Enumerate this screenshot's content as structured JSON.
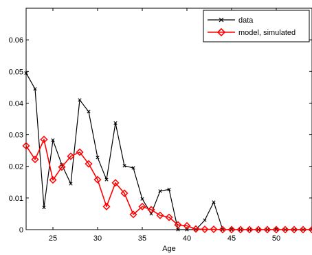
{
  "chart_data": {
    "type": "line",
    "xlabel": "Age",
    "ylabel": "",
    "xlim": [
      22,
      54
    ],
    "ylim": [
      0,
      0.07
    ],
    "grid": false,
    "legend_position": "top-right",
    "x_ticks": [
      25,
      30,
      35,
      40,
      45,
      50
    ],
    "x_tick_labels": [
      "25",
      "30",
      "35",
      "40",
      "45",
      "50"
    ],
    "y_ticks": [
      0,
      0.01,
      0.02,
      0.03,
      0.04,
      0.05,
      0.06
    ],
    "y_tick_labels": [
      "0",
      "0.01",
      "0.02",
      "0.03",
      "0.04",
      "0.05",
      "0.06"
    ],
    "x": [
      22,
      23,
      24,
      25,
      26,
      27,
      28,
      29,
      30,
      31,
      32,
      33,
      34,
      35,
      36,
      37,
      38,
      39,
      40,
      41,
      42,
      43,
      44,
      45,
      46,
      47,
      48,
      49,
      50,
      51,
      52,
      53,
      54
    ],
    "series": [
      {
        "name": "data",
        "color": "#000000",
        "marker": "x",
        "values": [
          0.0495,
          0.0445,
          0.007,
          0.0283,
          0.0205,
          0.0145,
          0.041,
          0.0373,
          0.0228,
          0.0158,
          0.0337,
          0.0202,
          0.0195,
          0.0097,
          0.005,
          0.0122,
          0.0127,
          0,
          0,
          0,
          0.003,
          0.0087,
          0,
          0,
          0,
          0,
          0,
          0,
          0,
          0,
          0,
          0,
          0
        ]
      },
      {
        "name": "model, simulated",
        "color": "#ff0000",
        "marker": "diamond",
        "values": [
          0.0265,
          0.0222,
          0.0285,
          0.0157,
          0.0198,
          0.0232,
          0.0245,
          0.0208,
          0.0158,
          0.0073,
          0.0148,
          0.0115,
          0.0048,
          0.0073,
          0.0063,
          0.0045,
          0.0039,
          0.0015,
          0.0012,
          0.0002,
          0.0001,
          0.0001,
          0,
          0,
          0,
          0,
          0,
          0,
          0,
          0,
          0,
          0,
          0
        ]
      }
    ]
  }
}
